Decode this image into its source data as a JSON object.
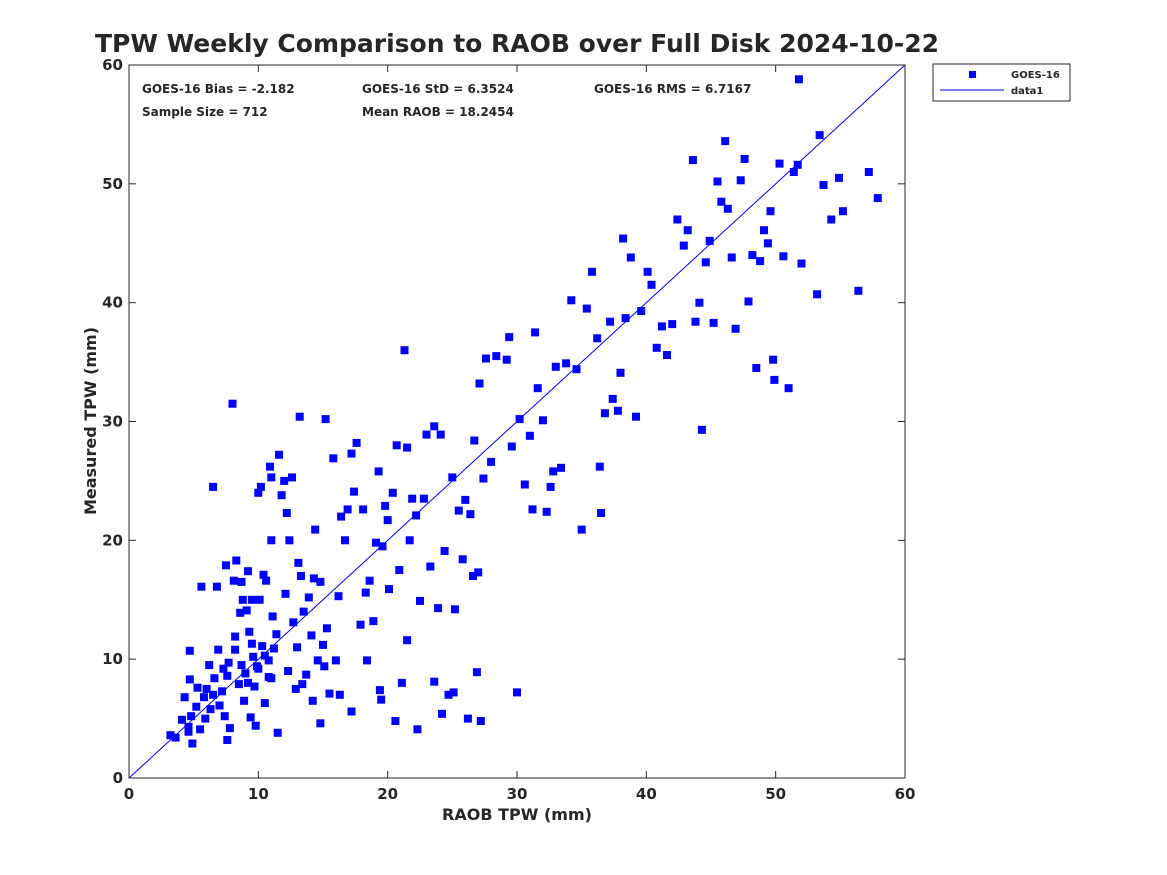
{
  "chart_data": {
    "type": "scatter",
    "title": "TPW Weekly Comparison to RAOB over Full Disk 2024-10-22",
    "xlabel": "RAOB TPW (mm)",
    "ylabel": "Measured TPW (mm)",
    "xlim": [
      0,
      60
    ],
    "ylim": [
      0,
      60
    ],
    "xticks": [
      0,
      10,
      20,
      30,
      40,
      50,
      60
    ],
    "yticks": [
      0,
      10,
      20,
      30,
      40,
      50,
      60
    ],
    "grid": false,
    "legend_position": "top-right, outside plot",
    "annotations": [
      {
        "text": "GOES-16 Bias = -2.182",
        "row": 1,
        "col": 1
      },
      {
        "text": "GOES-16 StD = 6.3524",
        "row": 1,
        "col": 2
      },
      {
        "text": "GOES-16 RMS = 6.7167",
        "row": 1,
        "col": 3
      },
      {
        "text": "Sample Size = 712",
        "row": 2,
        "col": 1
      },
      {
        "text": "Mean RAOB = 18.2454",
        "row": 2,
        "col": 2
      }
    ],
    "series": [
      {
        "name": "GOES-16",
        "kind": "scatter",
        "marker": "square",
        "color": "#0000ff",
        "points": [
          [
            3.2,
            3.6
          ],
          [
            3.6,
            3.4
          ],
          [
            4.1,
            4.9
          ],
          [
            4.3,
            6.8
          ],
          [
            4.6,
            3.9
          ],
          [
            4.6,
            4.3
          ],
          [
            4.7,
            8.3
          ],
          [
            4.7,
            10.7
          ],
          [
            4.8,
            5.2
          ],
          [
            4.9,
            2.9
          ],
          [
            5.2,
            6.0
          ],
          [
            5.3,
            7.6
          ],
          [
            5.5,
            4.1
          ],
          [
            5.6,
            16.1
          ],
          [
            5.8,
            6.8
          ],
          [
            5.9,
            5.0
          ],
          [
            6.0,
            7.5
          ],
          [
            6.2,
            9.5
          ],
          [
            6.3,
            5.8
          ],
          [
            6.5,
            24.5
          ],
          [
            6.6,
            8.4
          ],
          [
            6.8,
            16.1
          ],
          [
            6.9,
            10.8
          ],
          [
            7.0,
            6.1
          ],
          [
            7.2,
            7.3
          ],
          [
            7.4,
            5.2
          ],
          [
            7.5,
            17.9
          ],
          [
            7.6,
            3.2
          ],
          [
            7.7,
            9.7
          ],
          [
            7.8,
            4.2
          ],
          [
            8.0,
            31.5
          ],
          [
            8.1,
            16.6
          ],
          [
            8.2,
            11.9
          ],
          [
            8.3,
            18.3
          ],
          [
            8.5,
            7.9
          ],
          [
            8.6,
            13.9
          ],
          [
            8.7,
            16.5
          ],
          [
            8.8,
            15.0
          ],
          [
            8.9,
            6.5
          ],
          [
            9.0,
            8.8
          ],
          [
            9.1,
            14.1
          ],
          [
            9.2,
            17.4
          ],
          [
            9.3,
            12.3
          ],
          [
            9.4,
            5.1
          ],
          [
            9.5,
            15.0
          ],
          [
            9.6,
            10.2
          ],
          [
            9.7,
            7.7
          ],
          [
            9.8,
            4.4
          ],
          [
            9.9,
            9.4
          ],
          [
            10.0,
            24.0
          ],
          [
            10.1,
            15.0
          ],
          [
            10.2,
            24.5
          ],
          [
            10.3,
            11.1
          ],
          [
            10.4,
            17.1
          ],
          [
            10.5,
            6.3
          ],
          [
            10.6,
            16.6
          ],
          [
            10.8,
            8.5
          ],
          [
            10.9,
            26.2
          ],
          [
            11.0,
            20.0
          ],
          [
            11.0,
            25.3
          ],
          [
            11.1,
            13.6
          ],
          [
            11.2,
            10.9
          ],
          [
            11.5,
            3.8
          ],
          [
            11.6,
            27.2
          ],
          [
            11.8,
            23.8
          ],
          [
            12.0,
            25.0
          ],
          [
            12.1,
            15.5
          ],
          [
            12.2,
            22.3
          ],
          [
            12.4,
            20.0
          ],
          [
            12.6,
            25.3
          ],
          [
            12.7,
            13.1
          ],
          [
            12.9,
            7.5
          ],
          [
            13.0,
            11.0
          ],
          [
            13.1,
            18.1
          ],
          [
            13.2,
            30.4
          ],
          [
            13.3,
            17.0
          ],
          [
            13.5,
            14.0
          ],
          [
            13.7,
            8.7
          ],
          [
            13.9,
            15.2
          ],
          [
            14.1,
            12.0
          ],
          [
            14.3,
            16.8
          ],
          [
            14.4,
            20.9
          ],
          [
            14.6,
            9.9
          ],
          [
            14.8,
            16.5
          ],
          [
            15.0,
            11.2
          ],
          [
            15.2,
            30.2
          ],
          [
            15.3,
            12.6
          ],
          [
            15.5,
            7.1
          ],
          [
            15.8,
            26.9
          ],
          [
            16.0,
            9.9
          ],
          [
            16.2,
            15.3
          ],
          [
            16.4,
            22.0
          ],
          [
            16.7,
            20.0
          ],
          [
            16.9,
            22.6
          ],
          [
            17.2,
            27.3
          ],
          [
            17.4,
            24.1
          ],
          [
            17.6,
            28.2
          ],
          [
            17.9,
            12.9
          ],
          [
            18.1,
            22.6
          ],
          [
            18.3,
            15.6
          ],
          [
            18.6,
            16.6
          ],
          [
            18.9,
            13.2
          ],
          [
            19.1,
            19.8
          ],
          [
            19.3,
            25.8
          ],
          [
            19.4,
            7.4
          ],
          [
            19.6,
            19.5
          ],
          [
            19.8,
            22.9
          ],
          [
            20.0,
            21.7
          ],
          [
            20.1,
            15.9
          ],
          [
            20.4,
            24.0
          ],
          [
            20.7,
            28.0
          ],
          [
            20.9,
            17.5
          ],
          [
            21.1,
            8.0
          ],
          [
            21.3,
            36.0
          ],
          [
            21.5,
            27.8
          ],
          [
            21.7,
            20.0
          ],
          [
            21.9,
            23.5
          ],
          [
            22.2,
            22.1
          ],
          [
            22.5,
            14.9
          ],
          [
            22.8,
            23.5
          ],
          [
            23.0,
            28.9
          ],
          [
            23.3,
            17.8
          ],
          [
            23.6,
            29.6
          ],
          [
            23.9,
            14.3
          ],
          [
            24.1,
            28.9
          ],
          [
            24.4,
            19.1
          ],
          [
            24.7,
            7.0
          ],
          [
            25.0,
            25.3
          ],
          [
            25.2,
            14.2
          ],
          [
            25.5,
            22.5
          ],
          [
            25.8,
            18.4
          ],
          [
            26.0,
            23.4
          ],
          [
            26.4,
            22.2
          ],
          [
            26.6,
            17.0
          ],
          [
            26.7,
            28.4
          ],
          [
            27.0,
            17.3
          ],
          [
            27.1,
            33.2
          ],
          [
            27.4,
            25.2
          ],
          [
            27.6,
            35.3
          ],
          [
            28.0,
            26.6
          ],
          [
            28.4,
            35.5
          ],
          [
            29.2,
            35.2
          ],
          [
            29.4,
            37.1
          ],
          [
            29.6,
            27.9
          ],
          [
            30.0,
            7.2
          ],
          [
            30.2,
            30.2
          ],
          [
            30.6,
            24.7
          ],
          [
            31.0,
            28.8
          ],
          [
            31.2,
            22.6
          ],
          [
            31.4,
            37.5
          ],
          [
            31.6,
            32.8
          ],
          [
            32.0,
            30.1
          ],
          [
            32.3,
            22.4
          ],
          [
            32.6,
            24.5
          ],
          [
            32.8,
            25.8
          ],
          [
            33.0,
            34.6
          ],
          [
            33.4,
            26.1
          ],
          [
            33.8,
            34.9
          ],
          [
            34.2,
            40.2
          ],
          [
            34.6,
            34.4
          ],
          [
            35.0,
            20.9
          ],
          [
            35.4,
            39.5
          ],
          [
            35.8,
            42.6
          ],
          [
            36.2,
            37.0
          ],
          [
            36.4,
            26.2
          ],
          [
            36.5,
            22.3
          ],
          [
            36.8,
            30.7
          ],
          [
            37.2,
            38.4
          ],
          [
            37.4,
            31.9
          ],
          [
            37.8,
            30.9
          ],
          [
            38.0,
            34.1
          ],
          [
            38.2,
            45.4
          ],
          [
            38.4,
            38.7
          ],
          [
            38.8,
            43.8
          ],
          [
            39.2,
            30.4
          ],
          [
            39.6,
            39.3
          ],
          [
            40.1,
            42.6
          ],
          [
            40.4,
            41.5
          ],
          [
            40.8,
            36.2
          ],
          [
            41.2,
            38.0
          ],
          [
            41.6,
            35.6
          ],
          [
            42.0,
            38.2
          ],
          [
            42.4,
            47.0
          ],
          [
            42.9,
            44.8
          ],
          [
            43.2,
            46.1
          ],
          [
            43.6,
            52.0
          ],
          [
            43.8,
            38.4
          ],
          [
            44.1,
            40.0
          ],
          [
            44.3,
            29.3
          ],
          [
            44.6,
            43.4
          ],
          [
            44.9,
            45.2
          ],
          [
            45.2,
            38.3
          ],
          [
            45.5,
            50.2
          ],
          [
            45.8,
            48.5
          ],
          [
            46.1,
            53.6
          ],
          [
            46.3,
            47.9
          ],
          [
            46.6,
            43.8
          ],
          [
            46.9,
            37.8
          ],
          [
            47.3,
            50.3
          ],
          [
            47.6,
            52.1
          ],
          [
            47.9,
            40.1
          ],
          [
            48.2,
            44.0
          ],
          [
            48.5,
            34.5
          ],
          [
            48.8,
            43.5
          ],
          [
            49.1,
            46.1
          ],
          [
            49.4,
            45.0
          ],
          [
            49.6,
            47.7
          ],
          [
            49.8,
            35.2
          ],
          [
            49.9,
            33.5
          ],
          [
            50.3,
            51.7
          ],
          [
            50.6,
            43.9
          ],
          [
            51.0,
            32.8
          ],
          [
            51.4,
            51.0
          ],
          [
            51.7,
            51.6
          ],
          [
            51.8,
            58.8
          ],
          [
            52.0,
            43.3
          ],
          [
            53.2,
            40.7
          ],
          [
            53.4,
            54.1
          ],
          [
            53.7,
            49.9
          ],
          [
            54.3,
            47.0
          ],
          [
            54.9,
            50.5
          ],
          [
            55.2,
            47.7
          ],
          [
            56.4,
            41.0
          ],
          [
            57.2,
            51.0
          ],
          [
            57.9,
            48.8
          ],
          [
            8.7,
            9.5
          ],
          [
            9.2,
            8.0
          ],
          [
            10.0,
            9.2
          ],
          [
            10.5,
            10.3
          ],
          [
            11.0,
            8.4
          ],
          [
            8.2,
            10.8
          ],
          [
            7.6,
            8.6
          ],
          [
            9.5,
            11.3
          ],
          [
            10.8,
            9.9
          ],
          [
            11.4,
            12.1
          ],
          [
            6.5,
            7.0
          ],
          [
            7.3,
            9.2
          ],
          [
            12.3,
            9.0
          ],
          [
            13.4,
            7.9
          ],
          [
            14.2,
            6.5
          ],
          [
            15.1,
            9.4
          ],
          [
            16.3,
            7.0
          ],
          [
            17.2,
            5.6
          ],
          [
            18.4,
            9.9
          ],
          [
            19.5,
            6.6
          ],
          [
            20.6,
            4.8
          ],
          [
            21.5,
            11.6
          ],
          [
            22.3,
            4.1
          ],
          [
            23.6,
            8.1
          ],
          [
            24.2,
            5.4
          ],
          [
            25.1,
            7.2
          ],
          [
            26.2,
            5.0
          ],
          [
            26.9,
            8.9
          ],
          [
            27.2,
            4.8
          ],
          [
            14.8,
            4.6
          ]
        ]
      },
      {
        "name": "data1",
        "kind": "line",
        "color": "#0000ff",
        "points": [
          [
            0,
            0
          ],
          [
            60,
            60
          ]
        ]
      }
    ]
  }
}
